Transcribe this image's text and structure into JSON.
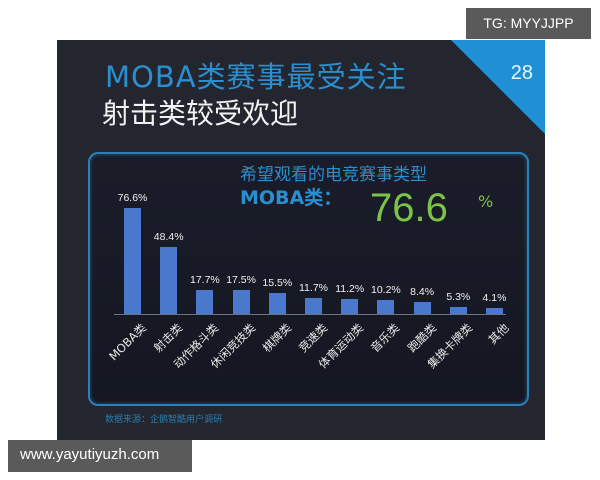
{
  "slide": {
    "page_number": "28",
    "title_line1": "MOBA类赛事最受关注",
    "title_line2": "射击类较受欢迎",
    "subtitle": "希望观看的电竞赛事类型",
    "highlight_label": "MOBA类：",
    "highlight_value": "76.6",
    "highlight_unit": "%",
    "source": "数据来源：企鹅智酷用户调研"
  },
  "watermarks": {
    "top_right": "TG: MYYJJPP",
    "bottom_left": "www.yayutiyuzh.com"
  },
  "colors": {
    "bar": "#4a78cc",
    "accent_blue": "#2a8fd0",
    "highlight_green": "#7cc34a",
    "background": "#23252f"
  },
  "chart_data": {
    "type": "bar",
    "title": "希望观看的电竞赛事类型",
    "categories": [
      "MOBA类",
      "射击类",
      "动作格斗类",
      "休闲竞技类",
      "棋牌类",
      "竞速类",
      "体育运动类",
      "音乐类",
      "跑酷类",
      "集换卡牌类",
      "其他"
    ],
    "values": [
      76.6,
      48.4,
      17.7,
      17.5,
      15.5,
      11.7,
      11.2,
      10.2,
      8.4,
      5.3,
      4.1
    ],
    "labels": [
      "76.6%",
      "48.4%",
      "17.7%",
      "17.5%",
      "15.5%",
      "11.7%",
      "11.2%",
      "10.2%",
      "8.4%",
      "5.3%",
      "4.1%"
    ],
    "unit": "%",
    "xlabel": "",
    "ylabel": "",
    "ylim": [
      0,
      80
    ],
    "grid": false,
    "legend": "none"
  }
}
